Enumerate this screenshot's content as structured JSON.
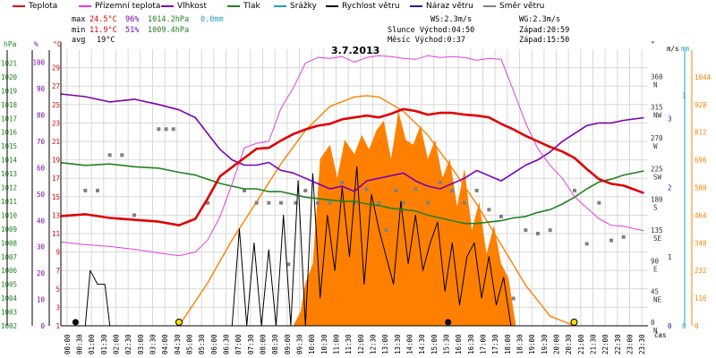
{
  "legend": [
    {
      "label": "Teplota",
      "color": "#e00000"
    },
    {
      "label": "Přízemní teplota",
      "color": "#e040e0"
    },
    {
      "label": "Vlhkost",
      "color": "#7a00b0"
    },
    {
      "label": "Tlak",
      "color": "#208020"
    },
    {
      "label": "Srážky",
      "color": "#20a0c0"
    },
    {
      "label": "Rychlost větru",
      "color": "#000000"
    },
    {
      "label": "Náraz větru",
      "color": "#20209a"
    },
    {
      "label": "Směr větru",
      "color": "#808080"
    }
  ],
  "stats": {
    "max_label": "max",
    "max_temp": "24.5°C",
    "max_hum": "96%",
    "max_press": "1014.2hPa",
    "max_rain": "0.0mm",
    "min_label": "min",
    "min_temp": "11.9°C",
    "min_hum": "51%",
    "min_press": "1009.4hPa",
    "avg_label": "avg",
    "avg_temp": "19°C",
    "ws": "WS:2.3m/s",
    "wg": "WG:2.3m/s",
    "sun": "Slunce Východ:04:50",
    "sun_set": "Západ:20:59",
    "moon": "Měsíc Východ:0:37",
    "moon_set": "Západ:15:50"
  },
  "date_label": "3.7.2013",
  "axis_units": {
    "hpa": "hPa",
    "pct": "%",
    "deg": "°C",
    "dir": "°",
    "ms": "m/s",
    "mm": "mm",
    "time": "čas"
  },
  "colors": {
    "temp": "#e00000",
    "ground": "#e040e0",
    "hum": "#7a00b0",
    "press": "#208020",
    "rain": "#20a0c0",
    "wind": "#000000",
    "gust": "#20209a",
    "dir": "#808080",
    "solar": "#ff8000",
    "grid": "#d8d8d8"
  },
  "chart_data": {
    "type": "line",
    "title": "3.7.2013",
    "xlabel": "čas",
    "x_ticks": [
      "00:00",
      "00:30",
      "01:00",
      "01:30",
      "02:00",
      "02:30",
      "03:00",
      "03:30",
      "04:00",
      "04:30",
      "05:00",
      "05:30",
      "06:00",
      "06:30",
      "07:00",
      "07:30",
      "08:00",
      "08:30",
      "09:00",
      "09:30",
      "10:00",
      "10:30",
      "11:00",
      "11:30",
      "12:00",
      "12:30",
      "13:00",
      "13:30",
      "14:00",
      "14:30",
      "15:00",
      "15:30",
      "16:00",
      "16:30",
      "17:00",
      "17:30",
      "18:00",
      "18:30",
      "19:00",
      "19:30",
      "20:00",
      "20:30",
      "21:00",
      "21:30",
      "22:00",
      "22:30",
      "23:00",
      "23:30"
    ],
    "axes": {
      "pressure_hPa": {
        "ticks": [
          1002,
          1003,
          1004,
          1005,
          1006,
          1007,
          1008,
          1009,
          1010,
          1011,
          1012,
          1013,
          1014,
          1015,
          1016,
          1017,
          1018,
          1019,
          1020,
          1021
        ],
        "range": [
          1002,
          1022
        ]
      },
      "humidity_pct": {
        "ticks": [
          0,
          10,
          20,
          30,
          40,
          50,
          60,
          70,
          80,
          90,
          100
        ],
        "range": [
          0,
          105
        ]
      },
      "temperature_C": {
        "ticks": [
          1,
          3,
          5,
          7,
          9,
          11,
          13,
          15,
          17,
          19,
          21,
          23,
          25,
          27,
          29
        ],
        "range": [
          1,
          31
        ]
      },
      "wind_dir_deg": {
        "ticks": [
          0,
          45,
          90,
          135,
          180,
          225,
          270,
          315,
          360
        ],
        "labels": [
          "N",
          "NE",
          "E",
          "SE",
          "S",
          "SW",
          "W",
          "NW",
          "N"
        ],
        "range": [
          0,
          405
        ]
      },
      "wind_ms": {
        "ticks": [
          0,
          1,
          2,
          3
        ],
        "range": [
          0,
          4
        ]
      },
      "rain_mm": {
        "ticks": [
          0,
          1
        ],
        "range": [
          0,
          1.2
        ]
      },
      "solar": {
        "ticks": [
          0,
          116,
          232,
          348,
          464,
          580,
          696,
          812,
          928,
          1044
        ],
        "range": [
          0,
          1160
        ]
      }
    },
    "series": [
      {
        "name": "Teplota",
        "axis": "temperature_C",
        "x": [
          0,
          1,
          2,
          3,
          4,
          4.83,
          5.5,
          6,
          6.5,
          7,
          7.5,
          8,
          8.5,
          9,
          9.5,
          10,
          10.5,
          11,
          11.5,
          12,
          12.5,
          13,
          13.5,
          14,
          14.5,
          15,
          15.5,
          16,
          16.5,
          17,
          17.5,
          18,
          18.5,
          19,
          19.5,
          20,
          20.5,
          21,
          21.5,
          22,
          22.5,
          23,
          23.83
        ],
        "y": [
          12.9,
          13.1,
          12.7,
          12.5,
          12.3,
          11.9,
          12.6,
          14.8,
          17.2,
          18.2,
          19.2,
          20.2,
          20.3,
          21.1,
          21.8,
          22.3,
          22.7,
          22.9,
          23.4,
          23.6,
          23.8,
          23.6,
          24.0,
          24.5,
          24.3,
          23.9,
          24.1,
          24.1,
          23.9,
          23.8,
          23.6,
          22.9,
          22.3,
          21.6,
          21.0,
          20.4,
          19.9,
          19.2,
          18.0,
          16.9,
          16.4,
          16.2,
          15.4
        ]
      },
      {
        "name": "Přízemní teplota",
        "axis": "temperature_C",
        "x": [
          0,
          1,
          2,
          3,
          4,
          4.83,
          5.5,
          6,
          6.5,
          7,
          7.5,
          8,
          8.5,
          9,
          9.5,
          10,
          10.5,
          11,
          11.5,
          12,
          12.5,
          13,
          13.5,
          14,
          14.5,
          15,
          15.5,
          16,
          16.5,
          17,
          17.5,
          18,
          18.5,
          19,
          19.5,
          20,
          20.5,
          21,
          21.5,
          22,
          22.5,
          23,
          23.83
        ],
        "y": [
          10.1,
          9.8,
          9.6,
          9.3,
          8.9,
          8.6,
          9.0,
          10.3,
          12.8,
          16.4,
          20.3,
          20.8,
          21.0,
          24.6,
          26.8,
          29.5,
          30.1,
          30.0,
          30.2,
          29.6,
          30.1,
          30.3,
          30.2,
          30.0,
          29.9,
          30.3,
          30.1,
          30.2,
          30.1,
          29.8,
          30.0,
          29.9,
          26.5,
          23.0,
          20.2,
          18.4,
          17.0,
          15.0,
          13.8,
          12.6,
          11.9,
          11.8,
          11.3
        ]
      },
      {
        "name": "Vlhkost",
        "axis": "humidity_pct",
        "x": [
          0,
          1,
          2,
          3,
          4,
          4.83,
          5.5,
          6,
          6.5,
          7,
          7.5,
          8,
          8.5,
          9,
          9.5,
          10,
          10.5,
          11,
          11.5,
          12,
          12.5,
          13,
          13.5,
          14,
          14.5,
          15,
          15.5,
          16,
          16.5,
          17,
          17.5,
          18,
          18.5,
          19,
          19.5,
          20,
          20.5,
          21,
          21.5,
          22,
          22.5,
          23,
          23.83
        ],
        "y": [
          88,
          87,
          85,
          86,
          84,
          82,
          79,
          73,
          67,
          63,
          61,
          61,
          62,
          59,
          58,
          56,
          54,
          52,
          53,
          51,
          55,
          56,
          57,
          58,
          55,
          53,
          52,
          54,
          56,
          59,
          57,
          55,
          58,
          61,
          63,
          66,
          70,
          73,
          76,
          77,
          77,
          78,
          79
        ]
      },
      {
        "name": "Tlak",
        "axis": "pressure_hPa",
        "x": [
          0,
          1,
          2,
          3,
          4,
          4.83,
          5.5,
          6,
          6.5,
          7,
          7.5,
          8,
          8.5,
          9,
          9.5,
          10,
          10.5,
          11,
          11.5,
          12,
          12.5,
          13,
          13.5,
          14,
          14.5,
          15,
          15.5,
          16,
          16.5,
          17,
          17.5,
          18,
          18.5,
          19,
          19.5,
          20,
          20.5,
          21,
          21.5,
          22,
          22.5,
          23,
          23.83
        ],
        "y": [
          1013.8,
          1013.6,
          1013.7,
          1013.5,
          1013.4,
          1013.1,
          1012.9,
          1012.6,
          1012.3,
          1012.1,
          1011.9,
          1011.9,
          1011.7,
          1011.7,
          1011.5,
          1011.3,
          1011.2,
          1011.1,
          1011.0,
          1011.0,
          1010.8,
          1010.7,
          1010.5,
          1010.4,
          1010.3,
          1010.0,
          1009.8,
          1009.6,
          1009.4,
          1009.4,
          1009.5,
          1009.6,
          1009.8,
          1009.9,
          1010.2,
          1010.4,
          1010.8,
          1011.3,
          1011.9,
          1012.4,
          1012.6,
          1012.9,
          1013.2
        ]
      },
      {
        "name": "Rychlost větru",
        "axis": "wind_ms",
        "x": [
          0,
          1.0,
          1.2,
          1.5,
          1.8,
          2.0,
          2.5,
          3,
          4,
          5,
          6,
          6.8,
          7.0,
          7.3,
          7.6,
          7.9,
          8.2,
          8.5,
          8.8,
          9.1,
          9.4,
          9.7,
          10.0,
          10.3,
          10.6,
          10.9,
          11.2,
          11.5,
          11.8,
          12.1,
          12.4,
          12.7,
          13.0,
          13.3,
          13.6,
          13.9,
          14.2,
          14.5,
          14.8,
          15.1,
          15.4,
          15.7,
          16.0,
          16.3,
          16.6,
          16.9,
          17.2,
          17.5,
          17.8,
          18.1,
          18.4,
          18.7,
          19,
          20,
          21,
          22,
          23,
          23.83
        ],
        "y": [
          0,
          0,
          0.8,
          0.6,
          0.6,
          0,
          0,
          0,
          0,
          0,
          0,
          0,
          0,
          1.4,
          0,
          1.2,
          0,
          1.1,
          0,
          1.6,
          0,
          2.1,
          0,
          2.2,
          0.4,
          1.6,
          0.8,
          2.0,
          1.0,
          2.3,
          0.6,
          1.9,
          1.4,
          1.0,
          0.6,
          1.8,
          0.9,
          1.6,
          0.8,
          1.2,
          1.5,
          0.5,
          1.2,
          0.3,
          1.0,
          1.2,
          0.4,
          1.0,
          0.3,
          0.7,
          0,
          0,
          0,
          0,
          0,
          0,
          0,
          0
        ]
      },
      {
        "name": "Směr větru",
        "axis": "wind_dir_deg",
        "x": [
          1.0,
          1.5,
          2.0,
          2.5,
          3.0,
          4.0,
          4.3,
          4.6,
          6.0,
          7.5,
          8.0,
          8.5,
          9.0,
          9.3,
          9.6,
          10.0,
          10.5,
          11.0,
          11.5,
          12.0,
          12.5,
          13.0,
          13.3,
          13.7,
          14.0,
          14.5,
          15.0,
          15.5,
          16.0,
          16.5,
          17.0,
          17.5,
          18.0,
          18.5,
          19.0,
          19.5,
          20.0,
          21.0,
          21.5,
          22.0,
          22.5,
          23.0
        ],
        "y": [
          198,
          198,
          250,
          250,
          162,
          288,
          288,
          288,
          180,
          198,
          180,
          180,
          180,
          90,
          180,
          198,
          180,
          180,
          210,
          180,
          200,
          180,
          140,
          198,
          180,
          200,
          180,
          210,
          198,
          180,
          198,
          170,
          160,
          40,
          140,
          135,
          140,
          198,
          120,
          180,
          125,
          130
        ]
      },
      {
        "name": "Solar",
        "axis": "solar",
        "x": [
          4.83,
          6,
          7,
          8,
          9,
          10,
          11,
          12,
          12.5,
          13,
          14,
          15,
          16,
          17,
          18,
          19,
          20,
          21
        ],
        "y": [
          0,
          180,
          360,
          520,
          680,
          820,
          920,
          960,
          965,
          960,
          900,
          800,
          660,
          510,
          340,
          170,
          40,
          0
        ]
      },
      {
        "name": "Solar measured",
        "axis": "solar",
        "x": [
          9.5,
          9.8,
          10.0,
          10.3,
          10.6,
          11.0,
          11.3,
          11.6,
          12.0,
          12.3,
          12.6,
          12.9,
          13.2,
          13.5,
          13.8,
          14.1,
          14.4,
          14.7,
          15.0,
          15.3,
          15.6,
          15.9,
          16.2,
          16.5,
          16.8,
          17.1,
          17.4,
          17.7,
          18.0,
          18.3,
          18.6
        ],
        "y": [
          0,
          60,
          180,
          260,
          700,
          760,
          620,
          780,
          720,
          800,
          740,
          820,
          860,
          700,
          900,
          780,
          760,
          840,
          700,
          780,
          620,
          700,
          500,
          660,
          400,
          520,
          300,
          420,
          260,
          200,
          0
        ]
      }
    ]
  }
}
